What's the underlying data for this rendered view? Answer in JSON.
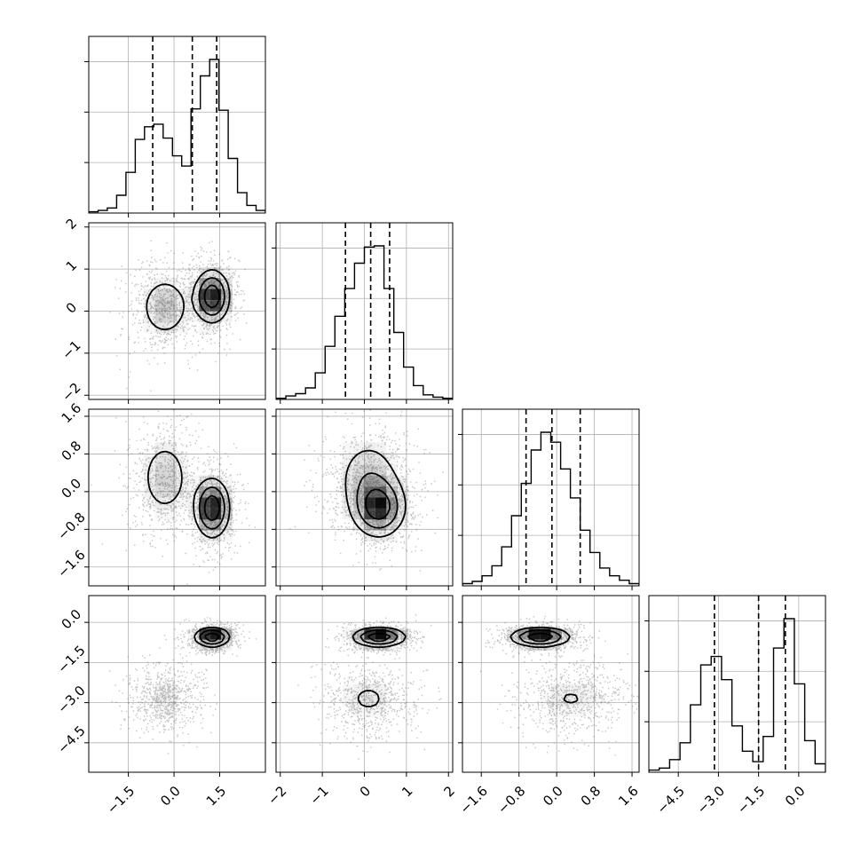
{
  "chart_data": {
    "type": "corner",
    "grid": true,
    "colors": {
      "line": "#000000",
      "grid": "#b0b0b0",
      "density": "#000000",
      "scatter": "#555555"
    },
    "params": [
      {
        "range": [
          -2.8,
          3.0
        ],
        "ticks": [
          -1.5,
          0.0,
          1.5
        ],
        "tick_labels": [
          "−1.5",
          "0.0",
          "1.5"
        ]
      },
      {
        "range": [
          -2.1,
          2.1
        ],
        "ticks": [
          -2,
          -1,
          0,
          1,
          2
        ],
        "tick_labels": [
          "−2",
          "−1",
          "0",
          "1",
          "2"
        ]
      },
      {
        "range": [
          -2.0,
          1.75
        ],
        "ticks": [
          -1.6,
          -0.8,
          0.0,
          0.8,
          1.6
        ],
        "tick_labels": [
          "−1.6",
          "−0.8",
          "0.0",
          "0.8",
          "1.6"
        ]
      },
      {
        "range": [
          -5.6,
          1.0
        ],
        "ticks": [
          -4.5,
          -3.0,
          -1.5,
          0.0
        ],
        "tick_labels": [
          "−4.5",
          "−3.0",
          "−1.5",
          "0.0"
        ]
      }
    ],
    "histograms": [
      {
        "quantiles": [
          -0.7,
          0.6,
          1.4
        ],
        "counts": [
          1,
          2,
          4,
          14,
          32,
          58,
          68,
          70,
          59,
          45,
          37,
          82,
          108,
          121,
          81,
          43,
          16,
          6,
          2
        ]
      },
      {
        "quantiles": [
          -0.45,
          0.15,
          0.6
        ],
        "counts": [
          1,
          3,
          5,
          10,
          23,
          46,
          72,
          96,
          118,
          132,
          133,
          96,
          58,
          28,
          12,
          4,
          2,
          1
        ]
      },
      {
        "quantiles": [
          -0.65,
          -0.1,
          0.5
        ],
        "counts": [
          2,
          4,
          9,
          18,
          35,
          63,
          92,
          122,
          138,
          129,
          105,
          79,
          50,
          30,
          16,
          9,
          5,
          2
        ]
      },
      {
        "quantiles": [
          -3.15,
          -1.5,
          -0.5
        ],
        "counts": [
          1,
          2,
          6,
          14,
          32,
          51,
          55,
          44,
          22,
          10,
          5,
          17,
          59,
          73,
          42,
          15,
          4
        ]
      }
    ],
    "components": [
      {
        "weight": 0.45,
        "mean": [
          -0.3,
          0.1,
          0.3,
          -2.85
        ],
        "sd": [
          0.5,
          0.45,
          0.5,
          0.55
        ]
      },
      {
        "weight": 0.55,
        "mean": [
          1.25,
          0.35,
          -0.35,
          -0.55
        ],
        "sd": [
          0.32,
          0.35,
          0.35,
          0.2
        ]
      }
    ],
    "contour_levels": [
      0.2,
      0.45,
      0.75
    ]
  }
}
